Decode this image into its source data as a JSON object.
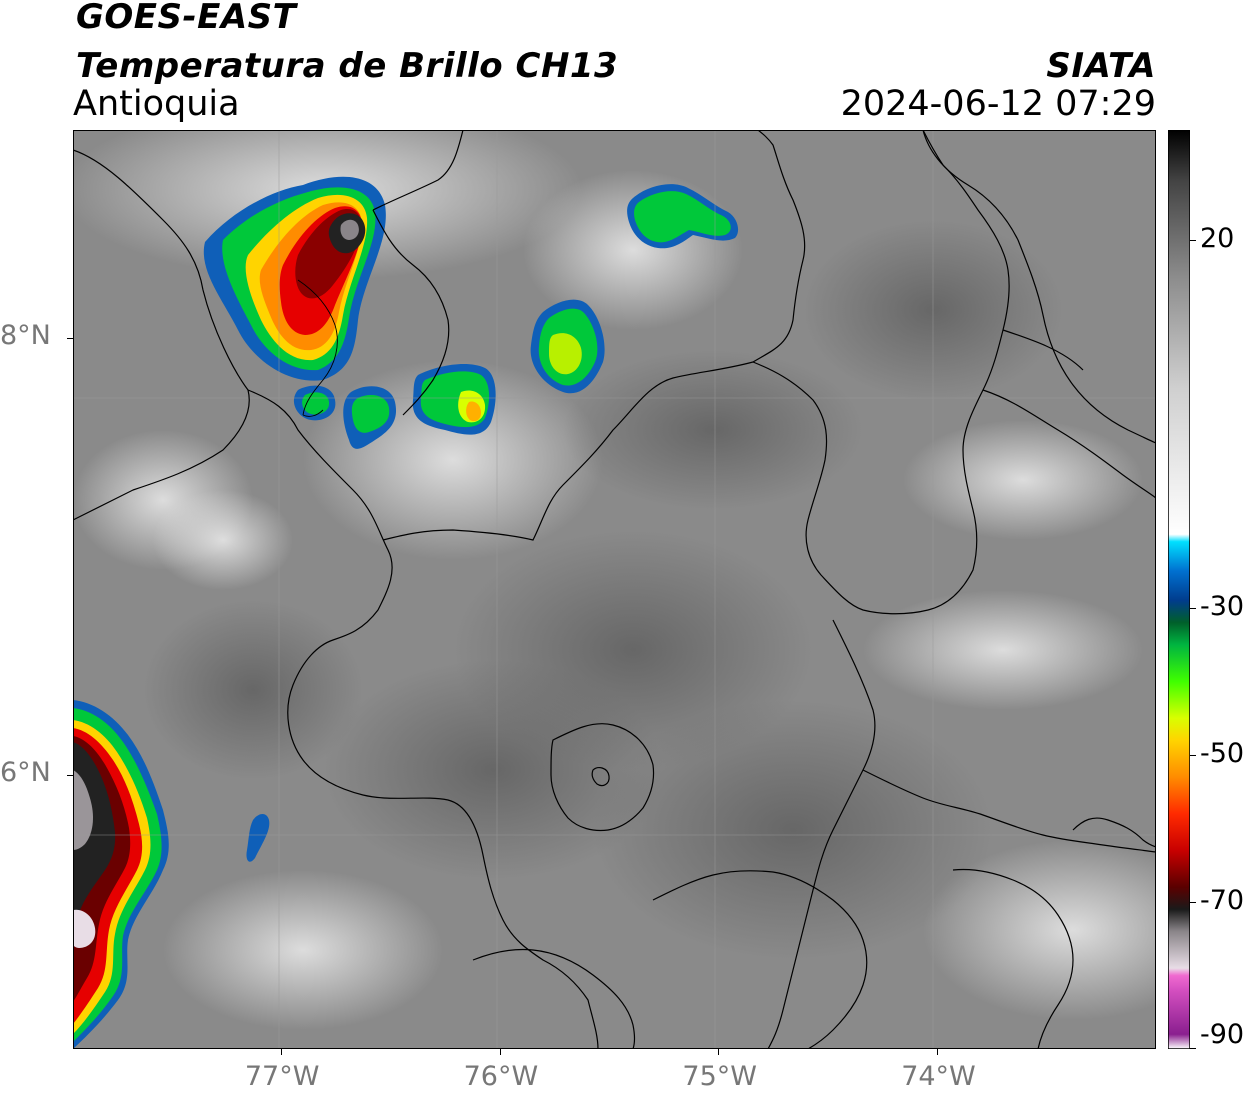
{
  "header": {
    "satellite": "GOES-EAST",
    "product": "Temperatura de Brillo CH13",
    "region": "Antioquia",
    "agency": "SIATA",
    "datetime": "2024-06-12 07:29"
  },
  "map": {
    "lon_range": [
      -77.95,
      -73.0
    ],
    "lat_range": [
      4.75,
      8.95
    ],
    "x_ticks": [
      {
        "value": -77,
        "label": "77°W"
      },
      {
        "value": -76,
        "label": "76°W"
      },
      {
        "value": -75,
        "label": "75°W"
      },
      {
        "value": -74,
        "label": "74°W"
      }
    ],
    "y_ticks": [
      {
        "value": 8,
        "label": "8°N"
      },
      {
        "value": 6,
        "label": "6°N"
      }
    ],
    "grid": true,
    "background_color": "#8a8a8a"
  },
  "colorbar": {
    "range": [
      -90,
      35
    ],
    "ticks": [
      {
        "value": 20,
        "label": "20"
      },
      {
        "value": -30,
        "label": "-30"
      },
      {
        "value": -50,
        "label": "-50"
      },
      {
        "value": -70,
        "label": "-70"
      },
      {
        "value": -90,
        "label": "-90"
      }
    ],
    "stops": [
      {
        "value": -90,
        "color": "#ffffff"
      },
      {
        "value": -88,
        "color": "#8a1f8f"
      },
      {
        "value": -82,
        "color": "#d44fc0"
      },
      {
        "value": -80,
        "color": "#f06ad0"
      },
      {
        "value": -79,
        "color": "#e8dde6"
      },
      {
        "value": -74,
        "color": "#8a8589"
      },
      {
        "value": -71,
        "color": "#1a1a1a"
      },
      {
        "value": -68,
        "color": "#5a0000"
      },
      {
        "value": -63,
        "color": "#c80000"
      },
      {
        "value": -58,
        "color": "#ff2a00"
      },
      {
        "value": -53,
        "color": "#ff8c00"
      },
      {
        "value": -48,
        "color": "#ffd400"
      },
      {
        "value": -45,
        "color": "#d9ff00"
      },
      {
        "value": -40,
        "color": "#3fff00"
      },
      {
        "value": -35,
        "color": "#00b440"
      },
      {
        "value": -32,
        "color": "#00602a"
      },
      {
        "value": -29,
        "color": "#003c8c"
      },
      {
        "value": -25,
        "color": "#0070d0"
      },
      {
        "value": -21,
        "color": "#00e0ff"
      },
      {
        "value": -20,
        "color": "#ffffff"
      },
      {
        "value": 0,
        "color": "#cfcfcf"
      },
      {
        "value": 15,
        "color": "#8c8c8c"
      },
      {
        "value": 28,
        "color": "#444444"
      },
      {
        "value": 35,
        "color": "#000000"
      }
    ]
  }
}
